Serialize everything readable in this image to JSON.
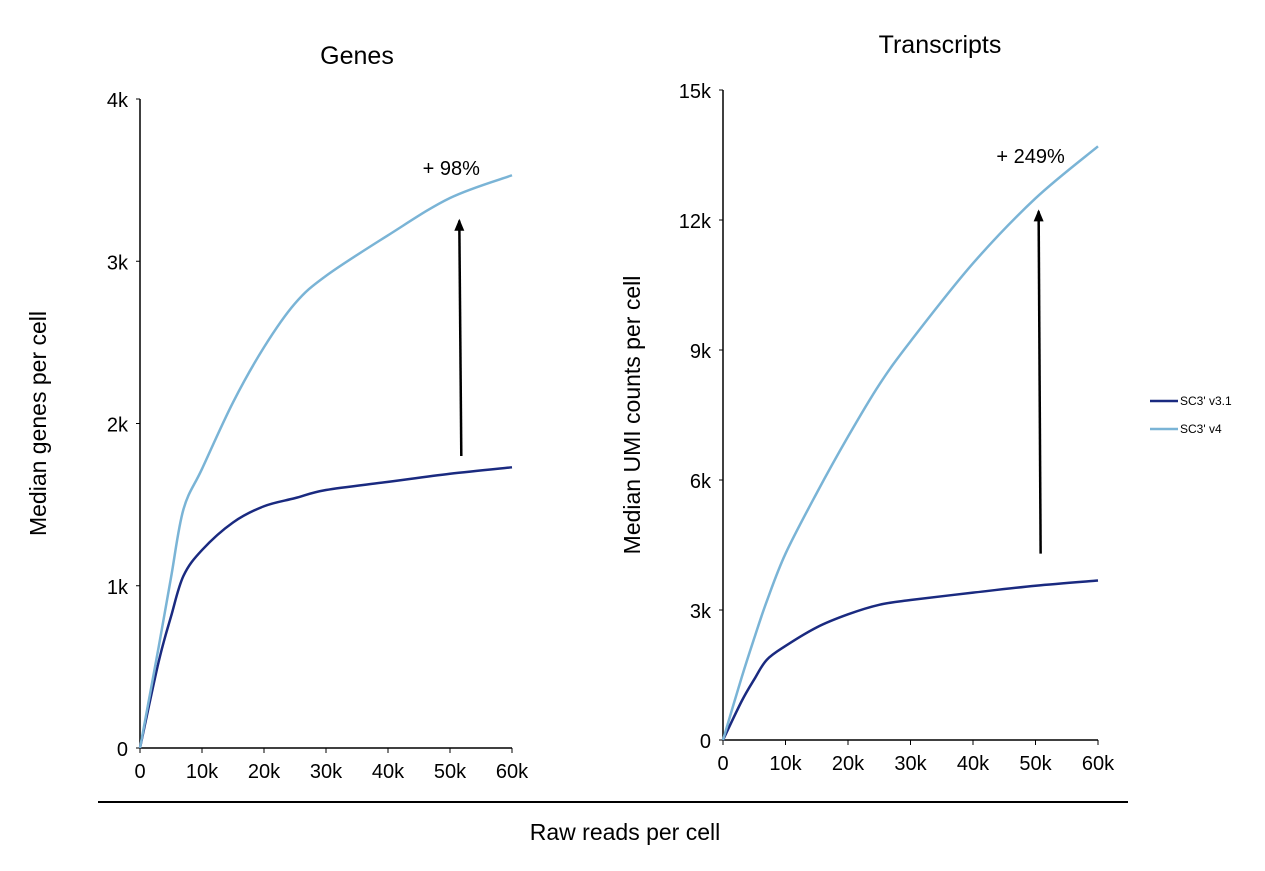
{
  "chart_data": [
    {
      "type": "line",
      "title": "Genes",
      "xlabel": "Raw reads per cell",
      "ylabel": "Median genes per cell",
      "xlim": [
        0,
        60000
      ],
      "ylim": [
        0,
        4000
      ],
      "xticks": [
        0,
        10000,
        20000,
        30000,
        40000,
        50000,
        60000
      ],
      "xtick_labels": [
        "0",
        "10k",
        "20k",
        "30k",
        "40k",
        "50k",
        "60k"
      ],
      "yticks": [
        0,
        1000,
        2000,
        3000,
        4000
      ],
      "ytick_labels": [
        "0",
        "1k",
        "2k",
        "3k",
        "4k"
      ],
      "grid": false,
      "x": [
        0,
        3000,
        5000,
        7000,
        10000,
        15000,
        20000,
        25000,
        30000,
        40000,
        50000,
        60000
      ],
      "series": [
        {
          "name": "SC3' v3.1",
          "color": "#1a2a80",
          "values": [
            0,
            530,
            810,
            1060,
            1220,
            1390,
            1490,
            1540,
            1590,
            1640,
            1690,
            1730
          ]
        },
        {
          "name": "SC3' v4",
          "color": "#7ab4d6",
          "values": [
            0,
            620,
            1050,
            1470,
            1720,
            2130,
            2470,
            2740,
            2910,
            3160,
            3390,
            3530
          ]
        }
      ],
      "annotation": {
        "text": "+ 98%",
        "arrow_x": 51500,
        "arrow_from": 1800,
        "arrow_to": 3250
      }
    },
    {
      "type": "line",
      "title": "Transcripts",
      "xlabel": "Raw reads per cell",
      "ylabel": "Median UMI counts per cell",
      "xlim": [
        0,
        60000
      ],
      "ylim": [
        0,
        15000
      ],
      "xticks": [
        0,
        10000,
        20000,
        30000,
        40000,
        50000,
        60000
      ],
      "xtick_labels": [
        "0",
        "10k",
        "20k",
        "30k",
        "40k",
        "50k",
        "60k"
      ],
      "yticks": [
        0,
        3000,
        6000,
        9000,
        12000,
        15000
      ],
      "ytick_labels": [
        "0",
        "3k",
        "6k",
        "9k",
        "12k",
        "15k"
      ],
      "grid": false,
      "x": [
        0,
        3000,
        5000,
        7000,
        10000,
        15000,
        20000,
        25000,
        30000,
        40000,
        50000,
        60000
      ],
      "series": [
        {
          "name": "SC3' v3.1",
          "color": "#1a2a80",
          "values": [
            0,
            900,
            1400,
            1850,
            2170,
            2600,
            2900,
            3120,
            3230,
            3400,
            3560,
            3680
          ]
        },
        {
          "name": "SC3' v4",
          "color": "#7ab4d6",
          "values": [
            0,
            1450,
            2350,
            3200,
            4300,
            5700,
            7000,
            8200,
            9200,
            11000,
            12500,
            13700
          ]
        }
      ],
      "annotation": {
        "text": "+ 249%",
        "arrow_x": 50500,
        "arrow_from": 4300,
        "arrow_to": 12200
      }
    }
  ],
  "shared_xlabel": "Raw reads per cell",
  "legend": {
    "placement": "right",
    "entries": [
      {
        "label": "SC3' v3.1",
        "color": "#1a2a80"
      },
      {
        "label": "SC3' v4",
        "color": "#7ab4d6"
      }
    ]
  }
}
